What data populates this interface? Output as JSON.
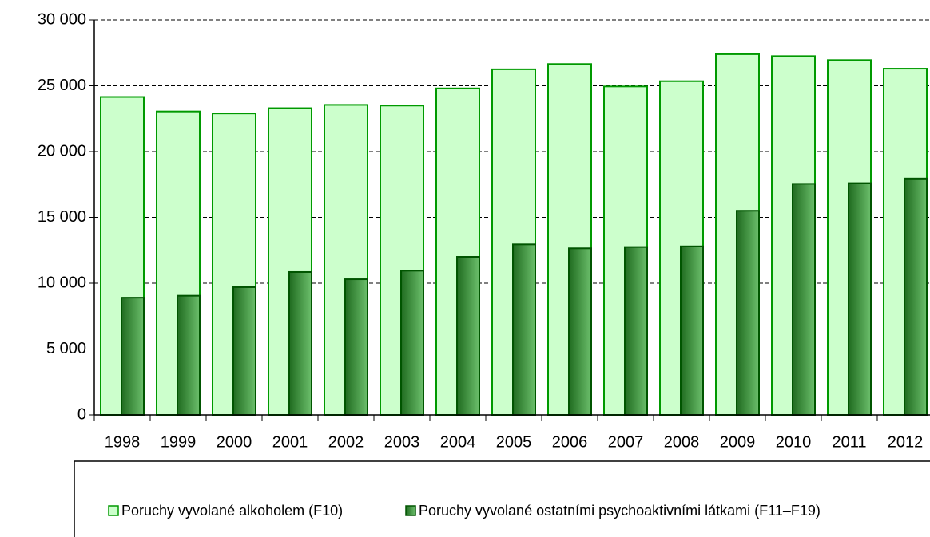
{
  "chart_data": {
    "type": "bar",
    "categories": [
      "1998",
      "1999",
      "2000",
      "2001",
      "2002",
      "2003",
      "2004",
      "2005",
      "2006",
      "2007",
      "2008",
      "2009",
      "2010",
      "2011",
      "2012"
    ],
    "series": [
      {
        "name": "Poruchy vyvolané alkoholem (F10)",
        "color": "#ccffcc",
        "stroke": "#009900",
        "values": [
          24150,
          23050,
          22900,
          23300,
          23550,
          23500,
          24800,
          26250,
          26650,
          24950,
          25350,
          27400,
          27250,
          26950,
          26300
        ]
      },
      {
        "name": "Poruchy vyvolané ostatními psychoaktivními látkami (F11–F19)",
        "color": "#3f9a3f",
        "stroke": "#005500",
        "values": [
          8900,
          9050,
          9700,
          10850,
          10300,
          10950,
          12000,
          12950,
          12650,
          12750,
          12800,
          15500,
          17550,
          17600,
          17950
        ]
      }
    ],
    "ylim": [
      0,
      30000
    ],
    "yticks": [
      {
        "value": 0,
        "label": "0"
      },
      {
        "value": 5000,
        "label": "5 000"
      },
      {
        "value": 10000,
        "label": "10 000"
      },
      {
        "value": 15000,
        "label": "15 000"
      },
      {
        "value": 20000,
        "label": "20 000"
      },
      {
        "value": 25000,
        "label": "25 000"
      },
      {
        "value": 30000,
        "label": "30 000"
      }
    ],
    "grid": true
  }
}
